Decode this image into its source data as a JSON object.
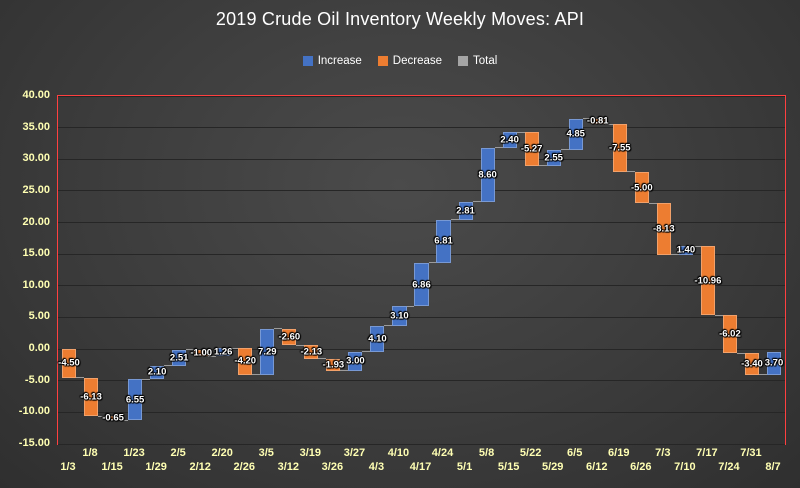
{
  "title": "2019 Crude Oil Inventory Weekly Moves: API",
  "legend": [
    {
      "id": "increase",
      "label": "Increase",
      "color": "#4472C4"
    },
    {
      "id": "decrease",
      "label": "Decrease",
      "color": "#ED7D31"
    },
    {
      "id": "total",
      "label": "Total",
      "color": "#A5A5A5"
    }
  ],
  "chart_data": {
    "type": "bar",
    "subtype": "waterfall",
    "title": "2019 Crude Oil Inventory Weekly Moves: API",
    "categories": [
      "1/3",
      "1/8",
      "1/15",
      "1/23",
      "1/29",
      "2/5",
      "2/12",
      "2/20",
      "2/26",
      "3/5",
      "3/12",
      "3/19",
      "3/26",
      "3/27",
      "4/3",
      "4/10",
      "4/17",
      "4/24",
      "5/1",
      "5/8",
      "5/15",
      "5/22",
      "5/29",
      "6/5",
      "6/12",
      "6/19",
      "6/26",
      "7/3",
      "7/10",
      "7/17",
      "7/24",
      "7/31",
      "8/7"
    ],
    "values": [
      -4.5,
      -6.13,
      -0.65,
      6.55,
      2.1,
      2.51,
      -1.0,
      1.26,
      -4.2,
      7.29,
      -2.6,
      -2.13,
      -1.93,
      3.0,
      4.1,
      3.1,
      6.86,
      6.81,
      2.81,
      8.6,
      2.4,
      -5.27,
      2.55,
      4.85,
      -0.81,
      -7.55,
      -5.0,
      -8.13,
      1.4,
      -10.96,
      -6.02,
      -3.4,
      3.7
    ],
    "labels": [
      "-4.50",
      "-6.13",
      "-0.65",
      "6.55",
      "2.10",
      "2.51",
      "-1.00",
      "1.26",
      "-4.20",
      "7.29",
      "-2.60",
      "-2.13",
      "-1.93",
      "3.00",
      "4.10",
      "3.10",
      "6.86",
      "6.81",
      "2.81",
      "8.60",
      "2.40",
      "-5.27",
      "2.55",
      "4.85",
      "-0.81",
      "-7.55",
      "-5.00",
      "-8.13",
      "1.40",
      "-10.96",
      "-6.02",
      "-3.40",
      "3.70"
    ],
    "y_ticks": [
      "40.00",
      "35.00",
      "30.00",
      "25.00",
      "20.00",
      "15.00",
      "10.00",
      "5.00",
      "0.00",
      "-5.00",
      "-10.00",
      "-15.00"
    ],
    "ylim": [
      -15,
      40
    ],
    "xlabel": "",
    "ylabel": "",
    "grid": true,
    "legend_position": "top",
    "legend_entries": [
      "Increase",
      "Decrease",
      "Total"
    ],
    "colors": {
      "increase": "#4472C4",
      "decrease": "#ED7D31",
      "total": "#A5A5A5",
      "plot_border": "#FF4040",
      "axis_text": "#FFFFB3",
      "gridline": "#262626",
      "data_label": "#FFFFFF",
      "background": "#3C3C3C"
    }
  }
}
